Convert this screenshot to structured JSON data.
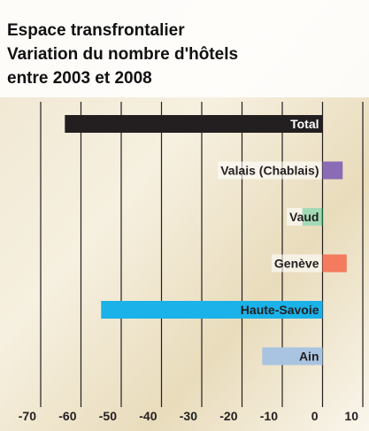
{
  "chart_data": {
    "type": "barh",
    "title": [
      "Espace transfrontalier",
      "Variation du nombre d'hôtels",
      "entre 2003 et 2008"
    ],
    "categories": [
      "Total",
      "Valais (Chablais)",
      "Vaud",
      "Genève",
      "Haute-Savoie",
      "Ain"
    ],
    "values": [
      -64,
      5,
      -5,
      6,
      -55,
      -15
    ],
    "colors": [
      "#231f20",
      "#8a6bb5",
      "#1aa34a",
      "#f47b5e",
      "#1ab2e8",
      "#a9c4e0"
    ],
    "label_colors": [
      "#ffffff",
      "#231f20",
      "#231f20",
      "#231f20",
      "#231f20",
      "#231f20"
    ],
    "xlim": [
      -70,
      10
    ],
    "xticks": [
      -70,
      -60,
      -50,
      -40,
      -30,
      -20,
      -10,
      0,
      10
    ],
    "grid": true
  }
}
